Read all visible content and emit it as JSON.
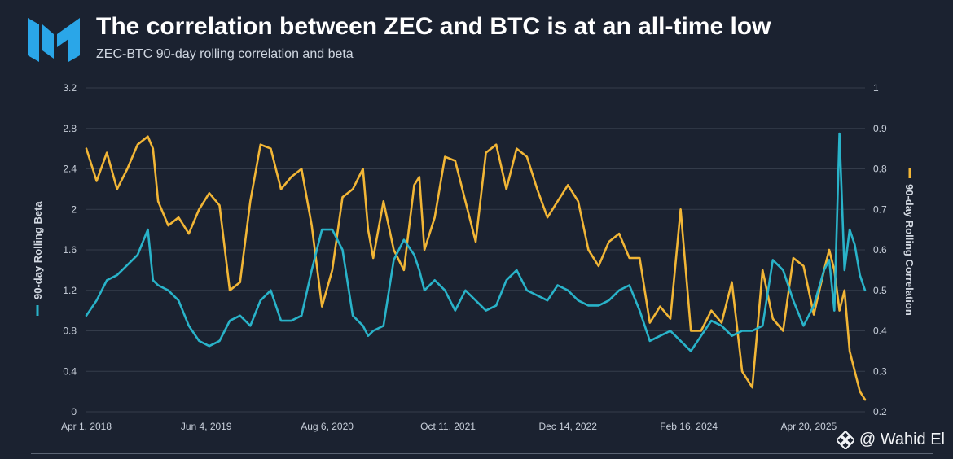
{
  "header": {
    "title": "The correlation between ZEC and BTC is at an all-time low",
    "subtitle": "ZEC-BTC 90-day rolling correlation and beta"
  },
  "watermark": {
    "text": "@ Wahid El"
  },
  "colors": {
    "beta": "#29b3c9",
    "correlation": "#f2b636",
    "grid": "#343c4a",
    "background": "#1b2230",
    "logo": "#2aa6e8"
  },
  "chart_data": {
    "type": "line",
    "title": "The correlation between ZEC and BTC is at an all-time low",
    "subtitle": "ZEC-BTC 90-day rolling correlation and beta",
    "xlabel": "",
    "x_range": [
      2018.25,
      2025.85
    ],
    "x_tick_labels": [
      "Apr 1, 2018",
      "Jun 4, 2019",
      "Aug 6, 2020",
      "Oct 11, 2021",
      "Dec 14, 2022",
      "Feb 16, 2024",
      "Apr 20, 2025"
    ],
    "x_tick_positions": [
      2018.25,
      2019.42,
      2020.6,
      2021.78,
      2022.95,
      2024.13,
      2025.3
    ],
    "y_left": {
      "label": "90-day Rolling Beta",
      "ylim": [
        0,
        3.2
      ],
      "ticks": [
        "0",
        "0.4",
        "0.8",
        "1.2",
        "1.6",
        "2",
        "2.4",
        "2.8",
        "3.2"
      ]
    },
    "y_right": {
      "label": "90-day Rolling Correlation",
      "ylim": [
        0.2,
        1.0
      ],
      "ticks": [
        "0.2",
        "0.3",
        "0.4",
        "0.5",
        "0.6",
        "0.7",
        "0.8",
        "0.9",
        "1"
      ]
    },
    "series": [
      {
        "name": "90-day Rolling Beta",
        "axis": "left",
        "x": [
          2018.25,
          2018.35,
          2018.45,
          2018.55,
          2018.65,
          2018.75,
          2018.85,
          2018.9,
          2018.95,
          2019.05,
          2019.15,
          2019.25,
          2019.35,
          2019.45,
          2019.55,
          2019.65,
          2019.75,
          2019.85,
          2019.95,
          2020.05,
          2020.15,
          2020.25,
          2020.35,
          2020.45,
          2020.55,
          2020.65,
          2020.75,
          2020.85,
          2020.95,
          2021.0,
          2021.05,
          2021.15,
          2021.25,
          2021.35,
          2021.45,
          2021.5,
          2021.55,
          2021.65,
          2021.75,
          2021.85,
          2021.95,
          2022.05,
          2022.15,
          2022.25,
          2022.35,
          2022.45,
          2022.55,
          2022.65,
          2022.75,
          2022.85,
          2022.95,
          2023.05,
          2023.15,
          2023.25,
          2023.35,
          2023.45,
          2023.55,
          2023.65,
          2023.75,
          2023.85,
          2023.95,
          2024.05,
          2024.15,
          2024.25,
          2024.35,
          2024.45,
          2024.55,
          2024.65,
          2024.75,
          2024.85,
          2024.95,
          2025.05,
          2025.15,
          2025.25,
          2025.35,
          2025.45,
          2025.5,
          2025.55,
          2025.6,
          2025.65,
          2025.7,
          2025.75,
          2025.8,
          2025.85
        ],
        "values": [
          0.95,
          1.1,
          1.3,
          1.35,
          1.45,
          1.55,
          1.8,
          1.3,
          1.25,
          1.2,
          1.1,
          0.85,
          0.7,
          0.65,
          0.7,
          0.9,
          0.95,
          0.85,
          1.1,
          1.2,
          0.9,
          0.9,
          0.95,
          1.4,
          1.8,
          1.8,
          1.6,
          0.95,
          0.85,
          0.75,
          0.8,
          0.85,
          1.5,
          1.7,
          1.55,
          1.4,
          1.2,
          1.3,
          1.2,
          1.0,
          1.2,
          1.1,
          1.0,
          1.05,
          1.3,
          1.4,
          1.2,
          1.15,
          1.1,
          1.25,
          1.2,
          1.1,
          1.05,
          1.05,
          1.1,
          1.2,
          1.25,
          1.0,
          0.7,
          0.75,
          0.8,
          0.7,
          0.6,
          0.75,
          0.9,
          0.85,
          0.75,
          0.8,
          0.8,
          0.85,
          1.5,
          1.4,
          1.1,
          0.85,
          1.05,
          1.4,
          1.5,
          1.0,
          2.75,
          1.4,
          1.8,
          1.65,
          1.35,
          1.2
        ]
      },
      {
        "name": "90-day Rolling Correlation",
        "axis": "right",
        "x": [
          2018.25,
          2018.35,
          2018.45,
          2018.55,
          2018.65,
          2018.75,
          2018.85,
          2018.9,
          2018.95,
          2019.05,
          2019.15,
          2019.25,
          2019.35,
          2019.45,
          2019.55,
          2019.65,
          2019.75,
          2019.85,
          2019.95,
          2020.05,
          2020.15,
          2020.25,
          2020.35,
          2020.45,
          2020.55,
          2020.65,
          2020.75,
          2020.85,
          2020.95,
          2021.0,
          2021.05,
          2021.15,
          2021.25,
          2021.35,
          2021.45,
          2021.5,
          2021.55,
          2021.65,
          2021.75,
          2021.85,
          2021.95,
          2022.05,
          2022.15,
          2022.25,
          2022.35,
          2022.45,
          2022.55,
          2022.65,
          2022.75,
          2022.85,
          2022.95,
          2023.05,
          2023.15,
          2023.25,
          2023.35,
          2023.45,
          2023.55,
          2023.65,
          2023.75,
          2023.85,
          2023.95,
          2024.05,
          2024.15,
          2024.25,
          2024.35,
          2024.45,
          2024.55,
          2024.65,
          2024.75,
          2024.85,
          2024.95,
          2025.05,
          2025.15,
          2025.25,
          2025.35,
          2025.45,
          2025.5,
          2025.55,
          2025.6,
          2025.65,
          2025.7,
          2025.75,
          2025.8,
          2025.85
        ],
        "values": [
          0.85,
          0.77,
          0.84,
          0.75,
          0.8,
          0.86,
          0.88,
          0.85,
          0.72,
          0.66,
          0.68,
          0.64,
          0.7,
          0.74,
          0.71,
          0.5,
          0.52,
          0.72,
          0.86,
          0.85,
          0.75,
          0.78,
          0.8,
          0.66,
          0.46,
          0.55,
          0.73,
          0.75,
          0.8,
          0.65,
          0.58,
          0.72,
          0.6,
          0.55,
          0.76,
          0.78,
          0.6,
          0.68,
          0.83,
          0.82,
          0.72,
          0.62,
          0.84,
          0.86,
          0.75,
          0.85,
          0.83,
          0.75,
          0.68,
          0.72,
          0.76,
          0.72,
          0.6,
          0.56,
          0.62,
          0.64,
          0.58,
          0.58,
          0.42,
          0.46,
          0.43,
          0.7,
          0.4,
          0.4,
          0.45,
          0.42,
          0.52,
          0.3,
          0.26,
          0.55,
          0.43,
          0.4,
          0.58,
          0.56,
          0.44,
          0.55,
          0.6,
          0.55,
          0.45,
          0.5,
          0.35,
          0.3,
          0.25,
          0.23
        ]
      }
    ]
  }
}
